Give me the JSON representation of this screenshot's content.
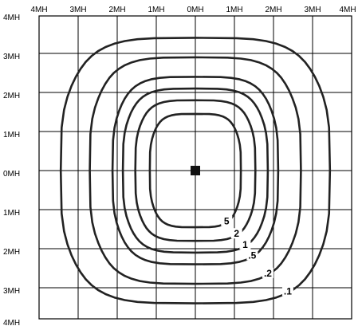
{
  "axes": {
    "x_ticks": [
      "4MH",
      "3MH",
      "2MH",
      "1MH",
      "0MH",
      "1MH",
      "2MH",
      "3MH",
      "4MH"
    ],
    "y_ticks": [
      "4MH",
      "3MH",
      "2MH",
      "1MH",
      "0MH",
      "1MH",
      "2MH",
      "3MH",
      "4MH"
    ]
  },
  "luminaire": {
    "icon": "square-marker-icon"
  },
  "isolines": [
    {
      "label": "5",
      "half_width_mh": 1.1,
      "half_height_mh": 1.45
    },
    {
      "label": "2",
      "half_width_mh": 1.45,
      "half_height_mh": 1.8
    },
    {
      "label": "1",
      "half_width_mh": 1.75,
      "half_height_mh": 2.1
    },
    {
      "label": ".5",
      "half_width_mh": 2.0,
      "half_height_mh": 2.4
    },
    {
      "label": ".2",
      "half_width_mh": 2.55,
      "half_height_mh": 2.9
    },
    {
      "label": ".1",
      "half_width_mh": 3.25,
      "half_height_mh": 3.4
    }
  ]
}
